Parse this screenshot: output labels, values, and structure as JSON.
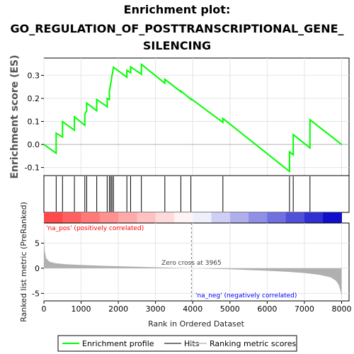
{
  "chart_data": {
    "type": "line",
    "title_line1": "Enrichment plot:",
    "title_line2": "GO_REGULATION_OF_POSTTRANSCRIPTIONAL_GENE_",
    "title_line3": "SILENCING",
    "es_ylabel": "Enrichment score (ES)",
    "metric_ylabel": "Ranked list metric (PreRanked)",
    "xlabel": "Rank in Ordered Dataset",
    "xlim": [
      0,
      8200
    ],
    "es_ylim": [
      -0.135,
      0.375
    ],
    "metric_ylim": [
      -6.5,
      9.0
    ],
    "x_ticks": [
      0,
      1000,
      2000,
      3000,
      4000,
      5000,
      6000,
      7000,
      8000
    ],
    "es_ticks": [
      -0.1,
      0.0,
      0.1,
      0.2,
      0.3
    ],
    "es_tick_labels": [
      "-0.1",
      "0.0",
      "0.1",
      "0.2",
      "0.3"
    ],
    "metric_ticks": [
      -5,
      0,
      5
    ],
    "zero_cross_label": "Zero cross at 3965",
    "zero_cross": 3965,
    "pos_label": "'na_pos' (positively correlated)",
    "neg_label": "'na_neg' (negatively correlated)",
    "hits": [
      330,
      500,
      820,
      1100,
      1150,
      1420,
      1700,
      1760,
      1800,
      1830,
      1870,
      2230,
      2330,
      2620,
      3250,
      3680,
      3950,
      4810,
      6600,
      6700,
      7150
    ],
    "es_profile": {
      "name": "Enrichment profile",
      "x": [
        0,
        330,
        330,
        500,
        500,
        820,
        820,
        1100,
        1100,
        1150,
        1150,
        1420,
        1420,
        1700,
        1700,
        1760,
        1760,
        1800,
        1800,
        1830,
        1830,
        1870,
        1870,
        2230,
        2230,
        2330,
        2330,
        2620,
        2620,
        3250,
        3250,
        3680,
        3680,
        3950,
        3950,
        4810,
        4810,
        6600,
        6600,
        6700,
        6700,
        7150,
        7150,
        8000
      ],
      "y": [
        0.0,
        -0.038,
        0.049,
        0.032,
        0.099,
        0.062,
        0.12,
        0.083,
        0.132,
        0.147,
        0.18,
        0.146,
        0.195,
        0.164,
        0.2,
        0.195,
        0.232,
        0.268,
        0.265,
        0.302,
        0.298,
        0.335,
        0.335,
        0.292,
        0.322,
        0.311,
        0.337,
        0.305,
        0.348,
        0.266,
        0.283,
        0.229,
        0.232,
        0.196,
        0.199,
        0.096,
        0.113,
        -0.117,
        -0.032,
        -0.045,
        0.043,
        -0.015,
        0.107,
        0.0
      ]
    },
    "metric_curve": {
      "x": [
        0,
        20,
        60,
        150,
        300,
        600,
        1000,
        1500,
        2000,
        2500,
        3000,
        3500,
        3965,
        4500,
        5000,
        5500,
        6000,
        6500,
        7000,
        7400,
        7700,
        7850,
        7920,
        7960,
        7990,
        8000
      ],
      "y": [
        6.5,
        3.5,
        2.0,
        1.3,
        1.0,
        0.8,
        0.65,
        0.5,
        0.4,
        0.3,
        0.2,
        0.1,
        0.0,
        -0.1,
        -0.2,
        -0.35,
        -0.5,
        -0.7,
        -0.95,
        -1.3,
        -1.8,
        -2.5,
        -3.3,
        -4.2,
        -5.2,
        -6.0
      ]
    },
    "legend": {
      "enrichment": "Enrichment profile",
      "hits": "Hits",
      "ranking": "Ranking metric scores"
    },
    "colors": {
      "es_line": "#00ff00",
      "hits": "#000000",
      "metric_fill": "#b0b0b0",
      "pos_text": "#ff0000",
      "neg_text": "#0000ff",
      "zero_line": "#808080"
    }
  }
}
